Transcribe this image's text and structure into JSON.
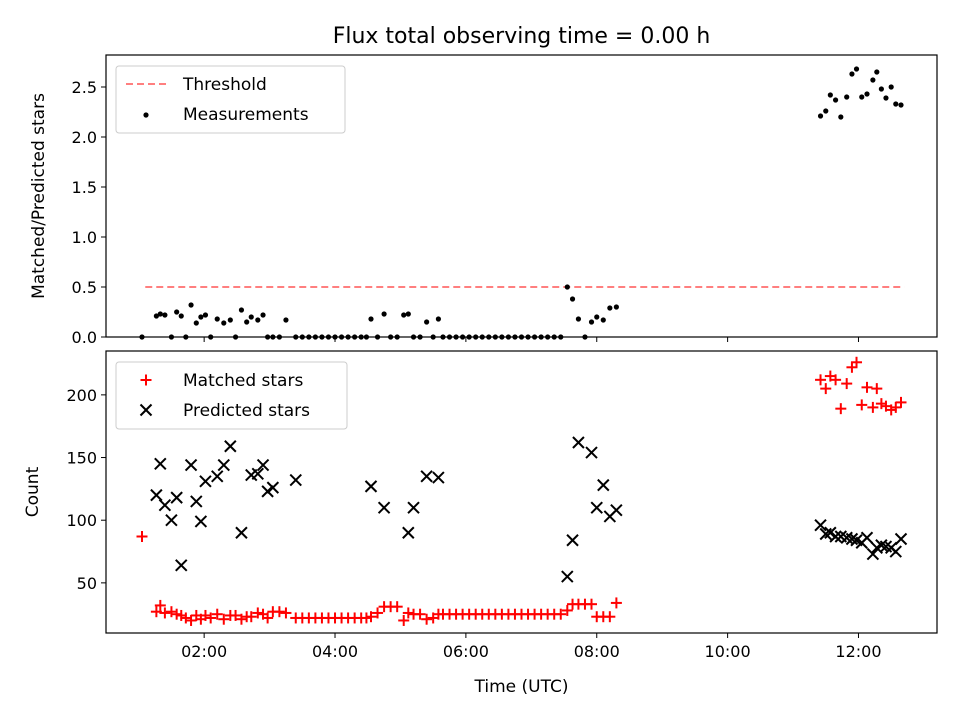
{
  "chart_data": [
    {
      "type": "scatter",
      "title": "Flux total observing time = 0.00 h",
      "xlabel": "",
      "ylabel": "Matched/Predicted stars",
      "xlim": [
        0.5,
        13.2
      ],
      "ylim": [
        0,
        2.82
      ],
      "yticks": [
        0.0,
        0.5,
        1.0,
        1.5,
        2.0,
        2.5
      ],
      "ytick_labels": [
        "0.0",
        "0.5",
        "1.0",
        "1.5",
        "2.0",
        "2.5"
      ],
      "legend": {
        "position": "top-left",
        "entries": [
          "Threshold",
          "Measurements"
        ]
      },
      "grid": false,
      "threshold": {
        "name": "Threshold",
        "y": 0.5,
        "x": [
          1.1,
          12.7
        ],
        "color": "#ff7f7f",
        "style": "dashed"
      },
      "series": [
        {
          "name": "Measurements",
          "color": "#000000",
          "marker": "dot",
          "x": [
            1.05,
            1.27,
            1.33,
            1.4,
            1.5,
            1.58,
            1.65,
            1.72,
            1.8,
            1.88,
            1.95,
            2.02,
            2.1,
            2.2,
            2.3,
            2.4,
            2.48,
            2.57,
            2.65,
            2.72,
            2.82,
            2.9,
            2.97,
            3.05,
            3.15,
            3.25,
            3.4,
            3.5,
            3.6,
            3.7,
            3.8,
            3.9,
            4.0,
            4.1,
            4.2,
            4.3,
            4.4,
            4.48,
            4.55,
            4.65,
            4.75,
            4.85,
            4.95,
            5.05,
            5.12,
            5.2,
            5.3,
            5.4,
            5.5,
            5.58,
            5.65,
            5.75,
            5.85,
            5.95,
            6.05,
            6.15,
            6.25,
            6.35,
            6.45,
            6.55,
            6.65,
            6.75,
            6.85,
            6.95,
            7.05,
            7.15,
            7.25,
            7.35,
            7.45,
            7.55,
            7.63,
            7.72,
            7.82,
            7.92,
            8.0,
            8.1,
            8.2,
            8.3,
            11.42,
            11.5,
            11.57,
            11.65,
            11.73,
            11.82,
            11.9,
            11.97,
            12.05,
            12.13,
            12.22,
            12.28,
            12.35,
            12.42,
            12.5,
            12.57,
            12.65
          ],
          "y": [
            0.0,
            0.21,
            0.23,
            0.22,
            0.0,
            0.25,
            0.21,
            0.0,
            0.32,
            0.14,
            0.2,
            0.22,
            0.0,
            0.18,
            0.14,
            0.17,
            0.0,
            0.27,
            0.15,
            0.2,
            0.17,
            0.22,
            0.0,
            0.0,
            0.0,
            0.17,
            0.0,
            0.0,
            0.0,
            0.0,
            0.0,
            0.0,
            0.0,
            0.0,
            0.0,
            0.0,
            0.0,
            0.0,
            0.18,
            0.0,
            0.23,
            0.0,
            0.0,
            0.22,
            0.23,
            0.0,
            0.0,
            0.15,
            0.0,
            0.18,
            0.0,
            0.0,
            0.0,
            0.0,
            0.0,
            0.0,
            0.0,
            0.0,
            0.0,
            0.0,
            0.0,
            0.0,
            0.0,
            0.0,
            0.0,
            0.0,
            0.0,
            0.0,
            0.0,
            0.5,
            0.38,
            0.18,
            0.0,
            0.15,
            0.2,
            0.17,
            0.29,
            0.3,
            2.21,
            2.26,
            2.42,
            2.37,
            2.2,
            2.4,
            2.63,
            2.68,
            2.4,
            2.43,
            2.57,
            2.65,
            2.48,
            2.39,
            2.5,
            2.33,
            2.32
          ]
        }
      ]
    },
    {
      "type": "scatter",
      "title": "",
      "xlabel": "Time (UTC)",
      "ylabel": "Count",
      "xlim": [
        0.5,
        13.2
      ],
      "ylim": [
        10,
        235
      ],
      "xticks": [
        2,
        4,
        6,
        8,
        10,
        12
      ],
      "xtick_labels": [
        "02:00",
        "04:00",
        "06:00",
        "08:00",
        "10:00",
        "12:00"
      ],
      "yticks": [
        50,
        100,
        150,
        200
      ],
      "ytick_labels": [
        "50",
        "100",
        "150",
        "200"
      ],
      "legend": {
        "position": "top-left",
        "entries": [
          "Matched stars",
          "Predicted stars"
        ]
      },
      "grid": false,
      "series": [
        {
          "name": "Matched stars",
          "color": "#ff0000",
          "marker": "plus",
          "x": [
            1.05,
            1.27,
            1.33,
            1.4,
            1.5,
            1.58,
            1.65,
            1.72,
            1.8,
            1.88,
            1.95,
            2.02,
            2.1,
            2.2,
            2.3,
            2.4,
            2.48,
            2.57,
            2.65,
            2.72,
            2.82,
            2.9,
            2.97,
            3.05,
            3.15,
            3.25,
            3.4,
            3.5,
            3.6,
            3.7,
            3.8,
            3.9,
            4.0,
            4.1,
            4.2,
            4.3,
            4.4,
            4.48,
            4.55,
            4.65,
            4.75,
            4.85,
            4.95,
            5.05,
            5.12,
            5.2,
            5.3,
            5.4,
            5.5,
            5.58,
            5.65,
            5.75,
            5.85,
            5.95,
            6.05,
            6.15,
            6.25,
            6.35,
            6.45,
            6.55,
            6.65,
            6.75,
            6.85,
            6.95,
            7.05,
            7.15,
            7.25,
            7.35,
            7.45,
            7.55,
            7.63,
            7.72,
            7.82,
            7.92,
            8.0,
            8.1,
            8.2,
            8.3,
            11.42,
            11.5,
            11.57,
            11.65,
            11.73,
            11.82,
            11.9,
            11.97,
            12.05,
            12.13,
            12.22,
            12.28,
            12.35,
            12.42,
            12.5,
            12.57,
            12.65
          ],
          "y": [
            87,
            27,
            32,
            26,
            27,
            25,
            24,
            22,
            20,
            24,
            21,
            24,
            22,
            25,
            21,
            24,
            24,
            21,
            23,
            23,
            26,
            25,
            22,
            27,
            27,
            26,
            22,
            22,
            22,
            22,
            22,
            22,
            22,
            22,
            22,
            22,
            22,
            22,
            23,
            26,
            31,
            31,
            31,
            20,
            26,
            25,
            25,
            21,
            22,
            25,
            25,
            25,
            25,
            25,
            25,
            25,
            25,
            25,
            25,
            25,
            25,
            25,
            25,
            25,
            25,
            25,
            25,
            25,
            25,
            28,
            33,
            33,
            33,
            33,
            23,
            23,
            23,
            34,
            212,
            205,
            215,
            212,
            189,
            209,
            222,
            226,
            192,
            206,
            190,
            205,
            193,
            191,
            188,
            190,
            194
          ]
        },
        {
          "name": "Predicted stars",
          "color": "#000000",
          "marker": "x",
          "x": [
            1.27,
            1.33,
            1.4,
            1.5,
            1.58,
            1.65,
            1.8,
            1.88,
            1.95,
            2.02,
            2.2,
            2.3,
            2.4,
            2.57,
            2.72,
            2.82,
            2.9,
            2.97,
            3.05,
            3.4,
            4.55,
            4.75,
            5.12,
            5.2,
            5.4,
            5.58,
            7.55,
            7.63,
            7.72,
            7.92,
            8.0,
            8.1,
            8.2,
            8.3,
            11.42,
            11.5,
            11.57,
            11.65,
            11.73,
            11.82,
            11.9,
            11.97,
            12.05,
            12.13,
            12.22,
            12.28,
            12.35,
            12.42,
            12.5,
            12.57,
            12.65
          ],
          "y": [
            120,
            145,
            112,
            100,
            118,
            64,
            144,
            115,
            99,
            131,
            135,
            144,
            159,
            90,
            136,
            137,
            144,
            123,
            126,
            132,
            127,
            110,
            90,
            110,
            135,
            134,
            55,
            84,
            162,
            154,
            110,
            128,
            103,
            108,
            96,
            89,
            90,
            87,
            87,
            86,
            85,
            84,
            82,
            86,
            73,
            78,
            80,
            79,
            78,
            75,
            85
          ]
        }
      ]
    }
  ]
}
